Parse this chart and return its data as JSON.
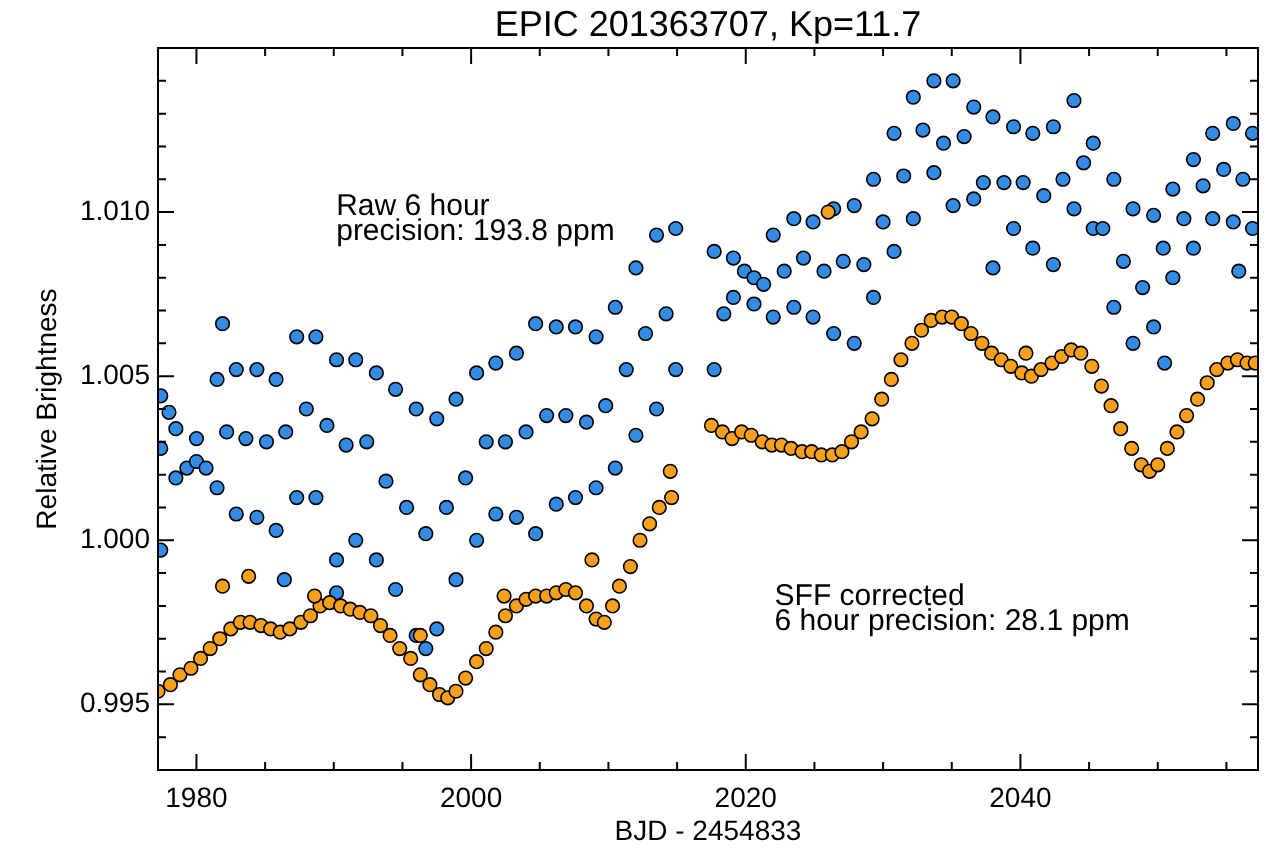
{
  "chart_data": {
    "type": "scatter",
    "title": "EPIC 201363707, Kp=11.7",
    "xlabel": "BJD - 2454833",
    "ylabel": "Relative Brightness",
    "annotations": [
      "Raw 6 hour\nprecision: 193.8 ppm",
      "SFF corrected\n6 hour precision: 28.1 ppm"
    ],
    "marker": "circle",
    "xlim": [
      1977.2,
      2057.3
    ],
    "xticks": [
      1980,
      {
        "value": 1985,
        "label": null
      },
      {
        "value": 1990,
        "label": null
      },
      {
        "value": 1995,
        "label": null
      },
      2000,
      {
        "value": 2005,
        "label": null
      },
      {
        "value": 2010,
        "label": null
      },
      {
        "value": 2015,
        "label": null
      },
      2020,
      {
        "value": 2025,
        "label": null
      },
      {
        "value": 2030,
        "label": null
      },
      {
        "value": 2035,
        "label": null
      },
      2040,
      {
        "value": 2045,
        "label": null
      },
      {
        "value": 2050,
        "label": null
      },
      {
        "value": 2055,
        "label": null
      }
    ],
    "ylim": [
      0.993,
      1.015
    ],
    "yticks": [
      {
        "value": 0.994,
        "label": null
      },
      0.995,
      {
        "value": 0.996,
        "label": null
      },
      {
        "value": 0.997,
        "label": null
      },
      {
        "value": 0.998,
        "label": null
      },
      {
        "value": 0.999,
        "label": null
      },
      {
        "value": 1.0,
        "label": "1.000"
      },
      {
        "value": 1.001,
        "label": null
      },
      {
        "value": 1.002,
        "label": null
      },
      {
        "value": 1.003,
        "label": null
      },
      {
        "value": 1.004,
        "label": null
      },
      1.005,
      {
        "value": 1.006,
        "label": null
      },
      {
        "value": 1.007,
        "label": null
      },
      {
        "value": 1.008,
        "label": null
      },
      {
        "value": 1.009,
        "label": null
      },
      {
        "value": 1.01,
        "label": "1.010"
      },
      {
        "value": 1.011,
        "label": null
      },
      {
        "value": 1.012,
        "label": null
      },
      {
        "value": 1.013,
        "label": null
      },
      {
        "value": 1.014,
        "label": null
      }
    ],
    "series": [
      {
        "color": "#328ce6",
        "x": [
          1977.4,
          1977.4,
          1978.0,
          1978.5,
          1978.5,
          1979.3,
          1980.0,
          1980.0,
          1980.7,
          1981.5,
          1981.5,
          1982.2,
          1982.9,
          1982.9,
          1983.6,
          1984.4,
          1984.4,
          1985.1,
          1985.8,
          1985.8,
          1986.5,
          1987.3,
          1987.3,
          1988.0,
          1988.7,
          1988.7,
          1989.5,
          1990.2,
          1990.2,
          1990.9,
          1991.6,
          1991.6,
          1992.4,
          1993.1,
          1993.1,
          1993.8,
          1994.5,
          1994.5,
          1995.3,
          1996.0,
          1996.0,
          1996.7,
          1997.5,
          1997.5,
          1998.2,
          1998.9,
          1998.9,
          1999.6,
          2000.4,
          2000.4,
          2001.1,
          2001.8,
          2001.8,
          2002.5,
          2003.3,
          2003.3,
          2004.0,
          2004.7,
          2004.7,
          2005.5,
          2006.2,
          2006.2,
          2006.9,
          2007.6,
          2007.6,
          2008.4,
          2009.1,
          2009.1,
          2009.8,
          2010.5,
          2010.5,
          2011.3,
          2012.0,
          2012.0,
          2012.7,
          2013.5,
          2013.5,
          2014.2,
          2014.9,
          2014.9,
          2017.7,
          2017.7,
          2018.4,
          2019.1,
          2019.1,
          2019.9,
          2020.6,
          2020.6,
          2021.3,
          2022.0,
          2022.0,
          2022.8,
          2023.5,
          2023.5,
          2024.2,
          2024.9,
          2024.9,
          2025.7,
          2026.4,
          2026.4,
          2027.1,
          2027.9,
          2027.9,
          2028.6,
          2029.3,
          2029.3,
          2030.0,
          2030.8,
          2030.8,
          2031.5,
          2032.2,
          2032.2,
          2032.9,
          2033.7,
          2033.7,
          2034.4,
          2035.1,
          2035.1,
          2035.9,
          2036.6,
          2036.6,
          2037.3,
          2038.0,
          2038.0,
          2038.8,
          2039.5,
          2039.5,
          2040.2,
          2040.9,
          2040.9,
          2041.7,
          2042.4,
          2042.4,
          2043.1,
          2043.9,
          2043.9,
          2044.6,
          2045.3,
          2045.3,
          2046.0,
          2046.8,
          2046.8,
          2047.5,
          2048.2,
          2048.2,
          2048.9,
          2049.7,
          2049.7,
          2050.4,
          2051.1,
          2051.1,
          2051.9,
          2052.6,
          2052.6,
          2053.3,
          2054.0,
          2054.0,
          2054.8,
          2055.5,
          2055.5,
          2056.2,
          2056.9,
          2056.9,
          1981.9,
          1977.4,
          1986.4,
          1990.2,
          1996.7,
          2050.5,
          2055.9
        ],
        "values": [
          1.0044,
          1.0028,
          1.0039,
          1.0034,
          1.0019,
          1.0022,
          1.0031,
          1.0024,
          1.0022,
          1.0049,
          1.0016,
          1.0033,
          1.0052,
          1.0008,
          1.0031,
          1.0052,
          1.0007,
          1.003,
          1.0049,
          1.0003,
          1.0033,
          1.0062,
          1.0013,
          1.004,
          1.0062,
          1.0013,
          1.0035,
          1.0055,
          0.9994,
          1.0029,
          1.0055,
          1.0,
          1.003,
          1.0051,
          0.9994,
          1.0018,
          1.0046,
          0.9985,
          1.001,
          1.004,
          0.9971,
          1.0002,
          1.0037,
          0.9973,
          1.001,
          1.0043,
          0.9988,
          1.0019,
          1.0051,
          1.0,
          1.003,
          1.0054,
          1.0008,
          1.003,
          1.0057,
          1.0007,
          1.0033,
          1.0066,
          1.0002,
          1.0038,
          1.0065,
          1.0011,
          1.0038,
          1.0065,
          1.0013,
          1.0036,
          1.0062,
          1.0016,
          1.0041,
          1.0071,
          1.0022,
          1.0052,
          1.0083,
          1.0032,
          1.0063,
          1.0093,
          1.004,
          1.0069,
          1.0095,
          1.0052,
          1.0088,
          1.0052,
          1.0069,
          1.0086,
          1.0074,
          1.0082,
          1.008,
          1.0072,
          1.0078,
          1.0093,
          1.0068,
          1.0082,
          1.0098,
          1.0071,
          1.0086,
          1.0097,
          1.0068,
          1.0082,
          1.0101,
          1.0063,
          1.0085,
          1.0102,
          1.006,
          1.0084,
          1.011,
          1.0074,
          1.0097,
          1.0124,
          1.0088,
          1.0111,
          1.0135,
          1.0098,
          1.0125,
          1.014,
          1.0112,
          1.0121,
          1.014,
          1.0102,
          1.0123,
          1.0132,
          1.0104,
          1.0109,
          1.0129,
          1.0083,
          1.0109,
          1.0126,
          1.0095,
          1.0109,
          1.0124,
          1.0089,
          1.0105,
          1.0126,
          1.0084,
          1.011,
          1.0134,
          1.0101,
          1.0115,
          1.0121,
          1.0095,
          1.0095,
          1.011,
          1.0071,
          1.0085,
          1.0101,
          1.006,
          1.0077,
          1.0099,
          1.0065,
          1.0089,
          1.0107,
          1.008,
          1.0098,
          1.0116,
          1.0089,
          1.0108,
          1.0124,
          1.0098,
          1.0113,
          1.0127,
          1.0097,
          1.011,
          1.0124,
          1.0095,
          1.0066,
          0.9997,
          0.9988,
          0.9984,
          0.9967,
          1.0054,
          1.0082
        ]
      },
      {
        "color": "#f8a01a",
        "x": [
          1977.2,
          1978.1,
          1978.8,
          1979.6,
          1980.3,
          1981.0,
          1981.7,
          1982.5,
          1983.2,
          1983.9,
          1984.7,
          1985.4,
          1986.1,
          1986.8,
          1987.6,
          1988.3,
          1989.0,
          1989.7,
          1990.5,
          1991.2,
          1991.9,
          1992.7,
          1993.4,
          1994.1,
          1994.8,
          1995.6,
          1996.3,
          1997.0,
          1997.7,
          1998.3,
          1998.9,
          1999.6,
          2000.4,
          2001.1,
          2001.8,
          2002.5,
          2003.3,
          2004.0,
          2004.7,
          2005.5,
          2006.2,
          2006.9,
          2007.6,
          2008.4,
          2009.1,
          2009.7,
          2010.3,
          2010.8,
          2011.6,
          2012.3,
          2013.0,
          2013.7,
          2014.6,
          2017.5,
          2018.3,
          2019.0,
          2019.7,
          2020.4,
          2021.2,
          2021.9,
          2022.6,
          2023.3,
          2024.1,
          2024.8,
          2025.5,
          2026.3,
          2027.0,
          2027.7,
          2028.4,
          2029.2,
          2029.9,
          2030.6,
          2031.3,
          2032.1,
          2032.8,
          2033.5,
          2034.3,
          2035.0,
          2035.7,
          2036.4,
          2037.2,
          2037.9,
          2038.6,
          2039.3,
          2040.1,
          2040.8,
          2041.5,
          2042.3,
          2043.0,
          2043.7,
          2044.4,
          2045.2,
          2045.9,
          2046.6,
          2047.3,
          2048.1,
          2048.8,
          2049.4,
          2050.0,
          2050.7,
          2051.4,
          2052.1,
          2052.9,
          2053.6,
          2054.3,
          2055.1,
          2055.8,
          2056.5,
          2057.1,
          1981.9,
          1983.8,
          1988.6,
          1996.3,
          2002.4,
          2008.8,
          2014.5,
          2026.0,
          2040.4
        ],
        "values": [
          0.9954,
          0.9956,
          0.9959,
          0.9961,
          0.9964,
          0.9967,
          0.997,
          0.9973,
          0.9975,
          0.9975,
          0.9974,
          0.9973,
          0.9972,
          0.9973,
          0.9975,
          0.9977,
          0.998,
          0.9981,
          0.998,
          0.9979,
          0.9978,
          0.9977,
          0.9974,
          0.9971,
          0.9967,
          0.9964,
          0.9959,
          0.9956,
          0.9953,
          0.9952,
          0.9954,
          0.9958,
          0.9963,
          0.9967,
          0.9972,
          0.9977,
          0.998,
          0.9982,
          0.9983,
          0.9983,
          0.9984,
          0.9985,
          0.9984,
          0.998,
          0.9976,
          0.9975,
          0.998,
          0.9986,
          0.9992,
          1.0,
          1.0005,
          1.001,
          1.0013,
          1.0035,
          1.0033,
          1.0031,
          1.0033,
          1.0032,
          1.003,
          1.0029,
          1.0029,
          1.0028,
          1.0027,
          1.0027,
          1.0026,
          1.0026,
          1.0027,
          1.003,
          1.0033,
          1.0037,
          1.0043,
          1.0049,
          1.0055,
          1.006,
          1.0064,
          1.0067,
          1.0068,
          1.0068,
          1.0066,
          1.0063,
          1.006,
          1.0057,
          1.0055,
          1.0053,
          1.0051,
          1.005,
          1.0052,
          1.0054,
          1.0056,
          1.0058,
          1.0057,
          1.0053,
          1.0047,
          1.0041,
          1.0034,
          1.0028,
          1.0023,
          1.0021,
          1.0023,
          1.0028,
          1.0033,
          1.0038,
          1.0043,
          1.0048,
          1.0052,
          1.0054,
          1.0055,
          1.0054,
          1.0054,
          0.9986,
          0.9989,
          0.9983,
          0.9971,
          0.9983,
          0.9994,
          1.0021,
          1.01,
          1.0057
        ]
      }
    ]
  }
}
